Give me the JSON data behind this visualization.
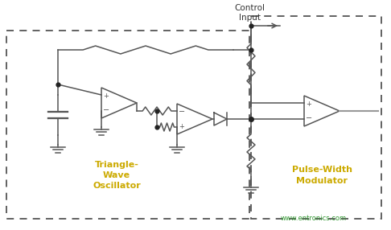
{
  "bg_color": "#ffffff",
  "line_color": "#555555",
  "label_osc": "Triangle-\nWave\nOscillator",
  "label_pwm": "Pulse-Width\nModulator",
  "label_ctrl": "Control\nInput",
  "label_website": "www.entronics.com",
  "title_color": "#ccaa00",
  "website_color": "#339933",
  "figsize": [
    4.86,
    2.86
  ],
  "dpi": 100
}
